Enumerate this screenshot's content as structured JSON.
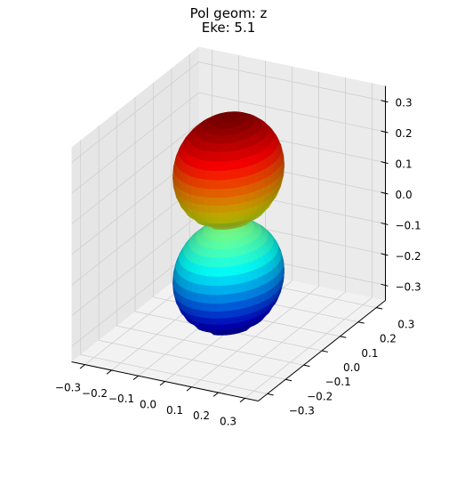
{
  "chart_data": {
    "type": "surface3d",
    "title_lines": [
      "Pol geom: z",
      "Eke: 5.1"
    ],
    "description_surface": "p-orbital-like dumbbell along z (radius proportional to |cos(theta)|)",
    "amplitude": 0.345,
    "colormap": "jet",
    "x_axis": {
      "range": [
        -0.35,
        0.35
      ],
      "ticks": [
        -0.3,
        -0.2,
        -0.1,
        0.0,
        0.1,
        0.2,
        0.3
      ],
      "tick_labels": [
        "−0.3",
        "−0.2",
        "−0.1",
        "0.0",
        "0.1",
        "0.2",
        "0.3"
      ]
    },
    "y_axis": {
      "range": [
        -0.35,
        0.35
      ],
      "ticks": [
        -0.3,
        -0.2,
        -0.1,
        0.0,
        0.1,
        0.2,
        0.3
      ],
      "tick_labels": [
        "−0.3",
        "−0.2",
        "−0.1",
        "0.0",
        "0.1",
        "0.2",
        "0.3"
      ]
    },
    "z_axis": {
      "range": [
        -0.35,
        0.35
      ],
      "ticks": [
        -0.3,
        -0.2,
        -0.1,
        0.0,
        0.1,
        0.2,
        0.3
      ],
      "tick_labels": [
        "−0.3",
        "−0.2",
        "−0.1",
        "0.0",
        "0.1",
        "0.2",
        "0.3"
      ]
    },
    "grid": true
  }
}
